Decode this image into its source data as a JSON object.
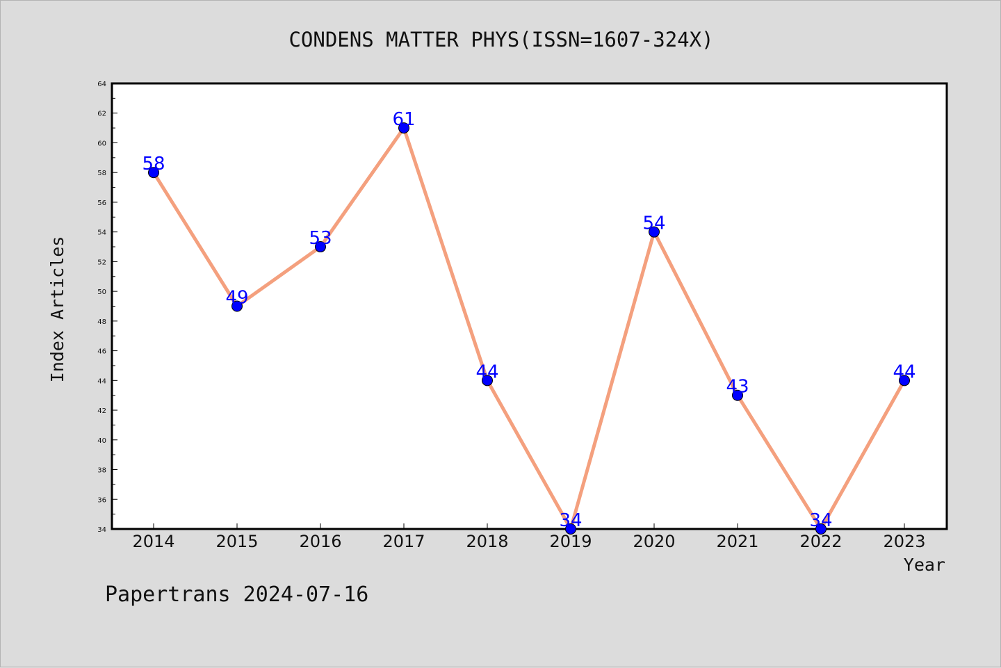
{
  "chart_data": {
    "type": "line",
    "title": "CONDENS MATTER PHYS(ISSN=1607-324X)",
    "xlabel": "Year",
    "ylabel": "Index Articles",
    "categories": [
      "2014",
      "2015",
      "2016",
      "2017",
      "2018",
      "2019",
      "2020",
      "2021",
      "2022",
      "2023"
    ],
    "values": [
      58,
      49,
      53,
      61,
      44,
      34,
      54,
      43,
      34,
      44
    ],
    "data_labels": [
      "58",
      "49",
      "53",
      "61",
      "44",
      "34",
      "54",
      "43",
      "34",
      "44"
    ],
    "ylim": [
      34,
      64
    ],
    "yticks": [
      "34",
      "36",
      "38",
      "40",
      "42",
      "44",
      "46",
      "48",
      "50",
      "52",
      "54",
      "56",
      "58",
      "60",
      "62",
      "64"
    ],
    "grid": false,
    "line_color": "#f4a07e",
    "marker_color": "#0000ff",
    "label_color": "#0000ff"
  },
  "footer": "Papertrans 2024-07-16"
}
